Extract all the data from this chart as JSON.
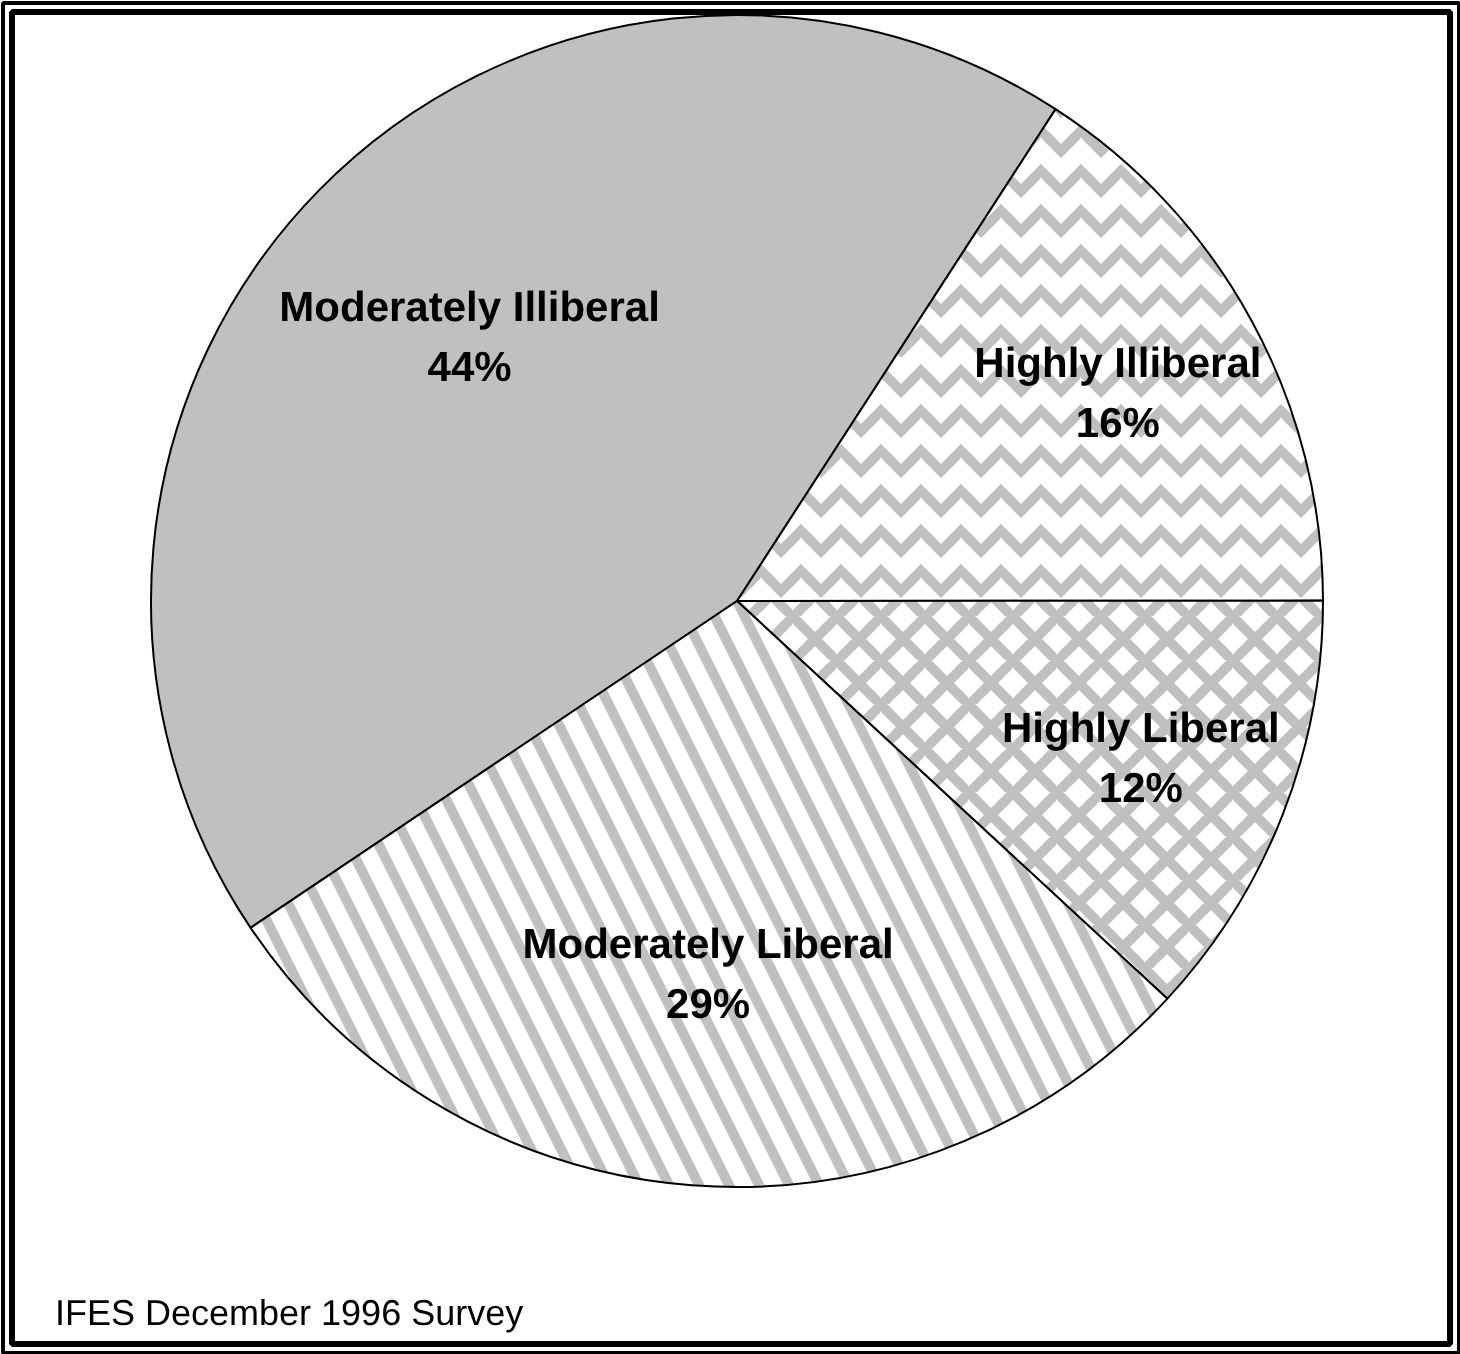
{
  "chart_data": {
    "type": "pie",
    "categories": [
      "Moderately Illiberal",
      "Highly Illiberal",
      "Highly Liberal",
      "Moderately Liberal"
    ],
    "values": [
      44,
      16,
      12,
      29
    ],
    "value_labels": [
      "44%",
      "16%",
      "12%",
      "29%"
    ],
    "colors": [
      "#c0c0c0",
      "#ffffff",
      "#ffffff",
      "#ffffff"
    ],
    "annotations": [
      "IFES December 1996 Survey"
    ]
  }
}
